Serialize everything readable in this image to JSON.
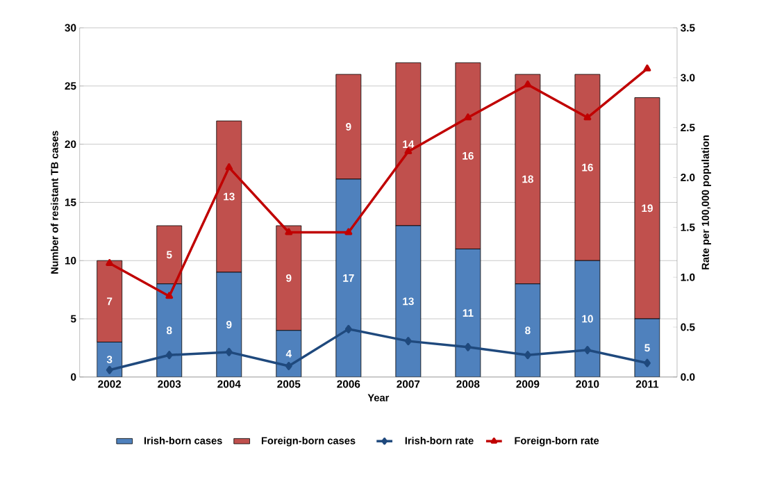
{
  "chart_data": {
    "type": "bar",
    "stacked": true,
    "xlabel": "Year",
    "ylabel": "Number of resistant TB cases",
    "y2label": "Rate per 100,000 population",
    "categories": [
      "2002",
      "2003",
      "2004",
      "2005",
      "2006",
      "2007",
      "2008",
      "2009",
      "2010",
      "2011"
    ],
    "series": [
      {
        "name": "Irish-born cases",
        "color": "#4f81bd",
        "values": [
          3,
          8,
          9,
          4,
          17,
          13,
          11,
          8,
          10,
          5
        ],
        "value_labels": [
          "3",
          "8",
          "9",
          "4",
          "17",
          "13",
          "11",
          "8",
          "10",
          "5"
        ]
      },
      {
        "name": "Foreign-born cases",
        "color": "#c0504d",
        "values": [
          7,
          5,
          13,
          9,
          9,
          14,
          16,
          18,
          16,
          19
        ],
        "value_labels": [
          "7",
          "5",
          "13",
          "9",
          "9",
          "14",
          "16",
          "18",
          "16",
          "19"
        ]
      },
      {
        "name": "Irish-born rate",
        "type": "line",
        "axis": "y2",
        "marker": "diamond",
        "line_style": "solid",
        "color": "#1f497d",
        "values": [
          0.07,
          0.22,
          0.25,
          0.11,
          0.48,
          0.36,
          0.3,
          0.22,
          0.27,
          0.14
        ]
      },
      {
        "name": "Foreign-born rate",
        "type": "line",
        "axis": "y2",
        "marker": "triangle",
        "line_style": "solid",
        "color": "#c00000",
        "values": [
          1.14,
          0.81,
          2.1,
          1.45,
          1.45,
          2.26,
          2.6,
          2.93,
          2.6,
          3.09
        ]
      }
    ],
    "ylim": [
      0,
      30
    ],
    "yticks": [
      0,
      5,
      10,
      15,
      20,
      25,
      30
    ],
    "y2lim": [
      0,
      3.5
    ],
    "y2ticks": [
      {
        "value": 0,
        "label": "0.0"
      },
      0.5,
      {
        "value": 1,
        "label": "1.0"
      },
      1.5,
      {
        "value": 2,
        "label": "2.0"
      },
      2.5,
      {
        "value": 3,
        "label": "3.0"
      },
      3.5
    ],
    "grid": "y",
    "legend": "bottom"
  }
}
